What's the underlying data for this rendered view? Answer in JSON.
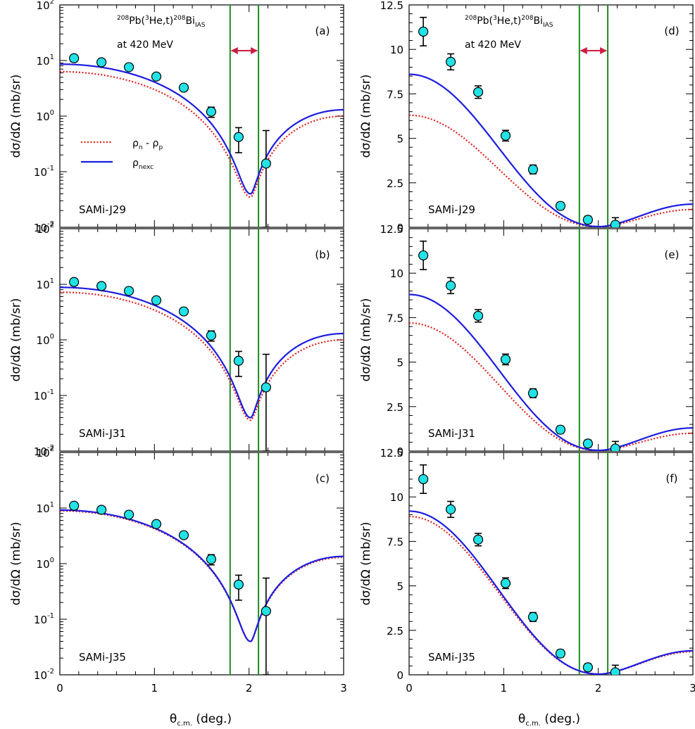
{
  "chart_data": {
    "type": "line",
    "layout": "3x2 panel grid",
    "reaction": {
      "pre": "208",
      "el1": "Pb(",
      "pre2": "3",
      "el2": "He,t)",
      "pre3": "208",
      "el3": "Bi",
      "sub": "IAS",
      "energy": "at 420 MeV"
    },
    "xlabel": {
      "main": "θ",
      "sub": "c.m.",
      "tail": " (deg.)"
    },
    "ylabel": "dσ/dΩ (mb/sr)",
    "xlim": [
      0,
      3
    ],
    "x_ticks": [
      "0",
      "1",
      "2",
      "3"
    ],
    "log_ylim": [
      0.01,
      100
    ],
    "log_y_ticks": [
      {
        "base": "10",
        "exp": "-2"
      },
      {
        "base": "10",
        "exp": "-1"
      },
      {
        "base": "10",
        "exp": "0"
      },
      {
        "base": "10",
        "exp": "1"
      },
      {
        "base": "10",
        "exp": "2"
      }
    ],
    "lin_ylim": [
      0,
      12.5
    ],
    "lin_y_ticks": [
      "0",
      "2.5",
      "5",
      "7.5",
      "10",
      "12.5"
    ],
    "vertical_lines_x": [
      1.8,
      2.1
    ],
    "arrow_range": [
      1.8,
      2.1
    ],
    "legend": {
      "placement": "middle-left of panel (a)",
      "entries": [
        {
          "series": "rho_diff",
          "main": "ρ",
          "sub1": "n",
          "mid": " - ρ",
          "sub2": "p"
        },
        {
          "series": "rho_nexc",
          "main": "ρ",
          "sub1": "nexc"
        }
      ]
    },
    "experimental_data": {
      "x": [
        0.15,
        0.44,
        0.73,
        1.02,
        1.31,
        1.6,
        1.89,
        2.18
      ],
      "y": [
        11.0,
        9.3,
        7.6,
        5.15,
        3.25,
        1.2,
        0.42,
        0.14
      ],
      "err": [
        0.8,
        0.45,
        0.35,
        0.3,
        0.25,
        0.2,
        0.2,
        0.4
      ],
      "log_err_low": [
        1.5,
        1.0,
        0.8,
        0.6,
        0.4,
        0.25,
        0.2,
        0.13
      ],
      "log_err_high": [
        1.5,
        1.0,
        0.8,
        0.6,
        0.4,
        0.25,
        0.2,
        0.41
      ]
    },
    "series_colors": {
      "rho_diff": "#e0201c",
      "rho_nexc": "#1c1ce0",
      "data_fill": "#22e2e6",
      "vlines": "#1e8a1e",
      "arrow": "#cc1e44"
    },
    "panels": [
      {
        "id": "a",
        "label": "(a)",
        "scale": "log",
        "model": "SAMi-J29",
        "col": 0,
        "row": 0,
        "series": [
          {
            "key": "rho_diff",
            "y0": 6.3,
            "min": 0.035
          },
          {
            "key": "rho_nexc",
            "y0": 8.6,
            "min": 0.04
          }
        ]
      },
      {
        "id": "b",
        "label": "(b)",
        "scale": "log",
        "model": "SAMi-J31",
        "col": 0,
        "row": 1,
        "series": [
          {
            "key": "rho_diff",
            "y0": 7.2,
            "min": 0.036
          },
          {
            "key": "rho_nexc",
            "y0": 8.8,
            "min": 0.04
          }
        ]
      },
      {
        "id": "c",
        "label": "(c)",
        "scale": "log",
        "model": "SAMi-J35",
        "col": 0,
        "row": 2,
        "series": [
          {
            "key": "rho_diff",
            "y0": 8.9,
            "min": 0.04
          },
          {
            "key": "rho_nexc",
            "y0": 9.2,
            "min": 0.04
          }
        ]
      },
      {
        "id": "d",
        "label": "(d)",
        "scale": "linear",
        "model": "SAMi-J29",
        "col": 1,
        "row": 0,
        "series": [
          {
            "key": "rho_diff",
            "y0": 6.3,
            "min": 0.035
          },
          {
            "key": "rho_nexc",
            "y0": 8.6,
            "min": 0.04
          }
        ]
      },
      {
        "id": "e",
        "label": "(e)",
        "scale": "linear",
        "model": "SAMi-J31",
        "col": 1,
        "row": 1,
        "series": [
          {
            "key": "rho_diff",
            "y0": 7.2,
            "min": 0.036
          },
          {
            "key": "rho_nexc",
            "y0": 8.8,
            "min": 0.04
          }
        ]
      },
      {
        "id": "f",
        "label": "(f)",
        "scale": "linear",
        "model": "SAMi-J35",
        "col": 1,
        "row": 2,
        "series": [
          {
            "key": "rho_diff",
            "y0": 8.9,
            "min": 0.04
          },
          {
            "key": "rho_nexc",
            "y0": 9.2,
            "min": 0.04
          }
        ]
      }
    ],
    "curve_shape": {
      "note": "smooth diffraction-like angular distribution with minimum at x=2.02 and rise to ~1.3 at x=3",
      "min_x": 2.02,
      "end_value": [
        1.3,
        1.35
      ],
      "rho_diff_end": [
        1.0,
        1.3
      ]
    }
  }
}
